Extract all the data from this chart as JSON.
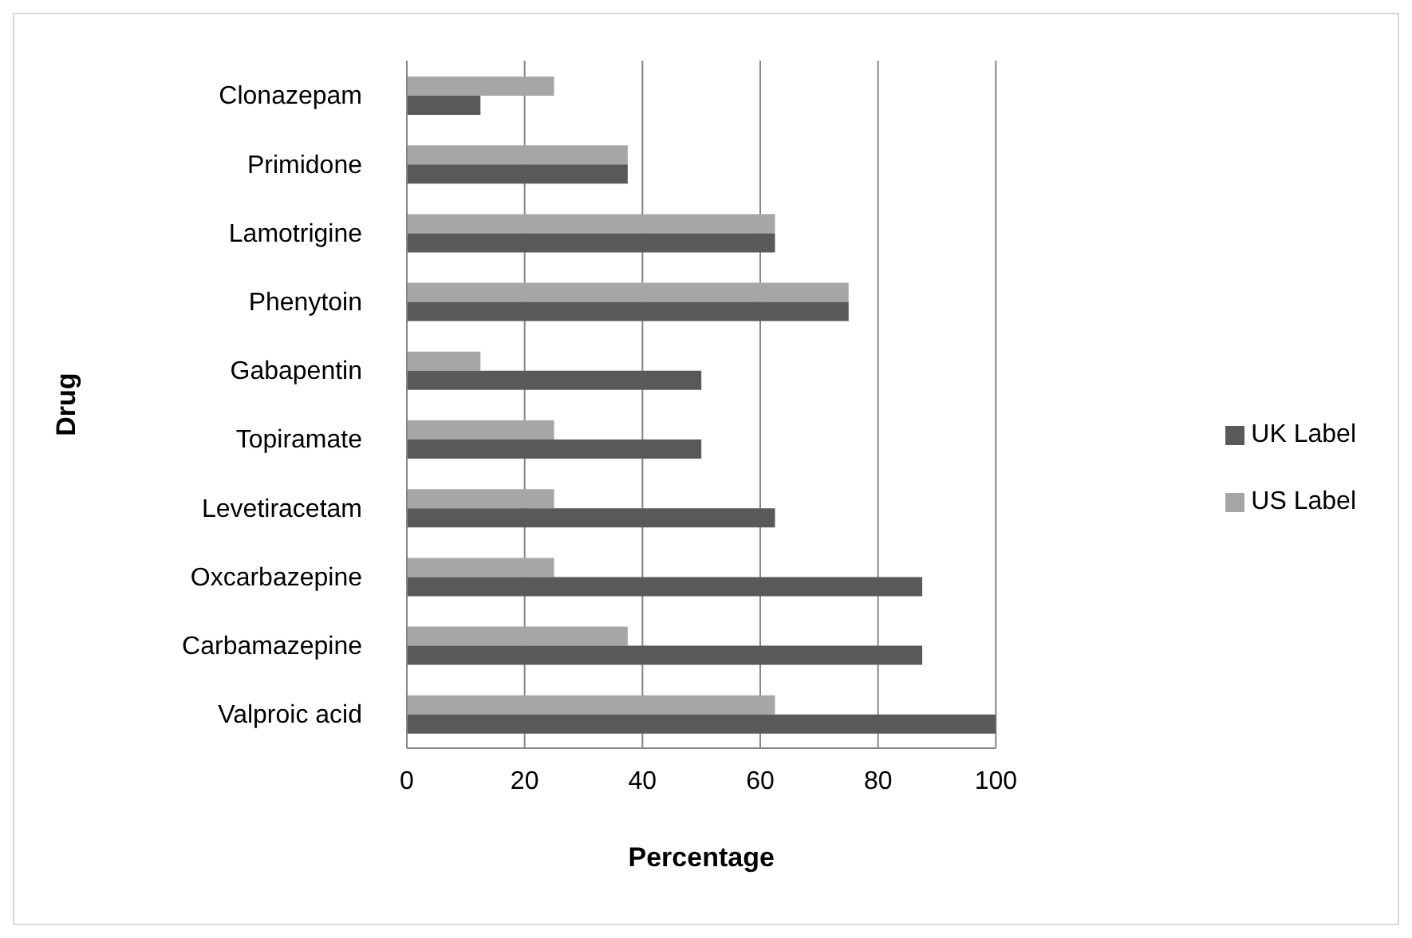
{
  "chart_data": {
    "type": "bar",
    "orientation": "horizontal",
    "xlabel": "Percentage",
    "ylabel": "Drug",
    "categories": [
      "Clonazepam",
      "Primidone",
      "Lamotrigine",
      "Phenytoin",
      "Gabapentin",
      "Topiramate",
      "Levetiracetam",
      "Oxcarbazepine",
      "Carbamazepine",
      "Valproic acid"
    ],
    "series": [
      {
        "name": "US Label",
        "color": "#a6a6a6",
        "values": [
          25,
          37.5,
          62.5,
          75,
          12.5,
          25,
          25,
          25,
          37.5,
          62.5
        ]
      },
      {
        "name": "UK Label",
        "color": "#595959",
        "values": [
          12.5,
          37.5,
          62.5,
          75,
          50,
          50,
          62.5,
          87.5,
          87.5,
          100
        ]
      }
    ],
    "xlim": [
      0,
      100
    ],
    "xticks": [
      0,
      20,
      40,
      60,
      80,
      100
    ],
    "grid": "x",
    "legend": "right"
  }
}
